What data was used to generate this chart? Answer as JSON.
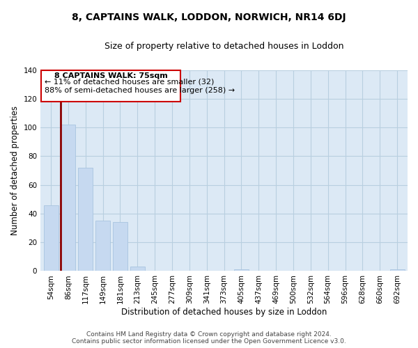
{
  "title": "8, CAPTAINS WALK, LODDON, NORWICH, NR14 6DJ",
  "subtitle": "Size of property relative to detached houses in Loddon",
  "xlabel": "Distribution of detached houses by size in Loddon",
  "ylabel": "Number of detached properties",
  "categories": [
    "54sqm",
    "86sqm",
    "117sqm",
    "149sqm",
    "181sqm",
    "213sqm",
    "245sqm",
    "277sqm",
    "309sqm",
    "341sqm",
    "373sqm",
    "405sqm",
    "437sqm",
    "469sqm",
    "500sqm",
    "532sqm",
    "564sqm",
    "596sqm",
    "628sqm",
    "660sqm",
    "692sqm"
  ],
  "values": [
    46,
    102,
    72,
    35,
    34,
    3,
    0,
    0,
    0,
    0,
    0,
    1,
    0,
    0,
    0,
    0,
    0,
    0,
    0,
    0,
    1
  ],
  "bar_color": "#c6d9f0",
  "bar_edge_color": "#a8c4e0",
  "annotation_title": "8 CAPTAINS WALK: 75sqm",
  "annotation_line1": "← 11% of detached houses are smaller (32)",
  "annotation_line2": "88% of semi-detached houses are larger (258) →",
  "ylim": [
    0,
    140
  ],
  "yticks": [
    0,
    20,
    40,
    60,
    80,
    100,
    120,
    140
  ],
  "footer_line1": "Contains HM Land Registry data © Crown copyright and database right 2024.",
  "footer_line2": "Contains public sector information licensed under the Open Government Licence v3.0.",
  "bg_color": "#ffffff",
  "plot_bg_color": "#dce9f5",
  "grid_color": "#b8cfe0",
  "annotation_box_color": "#ffffff",
  "annotation_box_edge": "#cc0000",
  "subject_line_color": "#8b0000",
  "title_fontsize": 10,
  "subtitle_fontsize": 9,
  "axis_label_fontsize": 8.5,
  "tick_fontsize": 7.5,
  "annotation_fontsize": 8,
  "footer_fontsize": 6.5
}
